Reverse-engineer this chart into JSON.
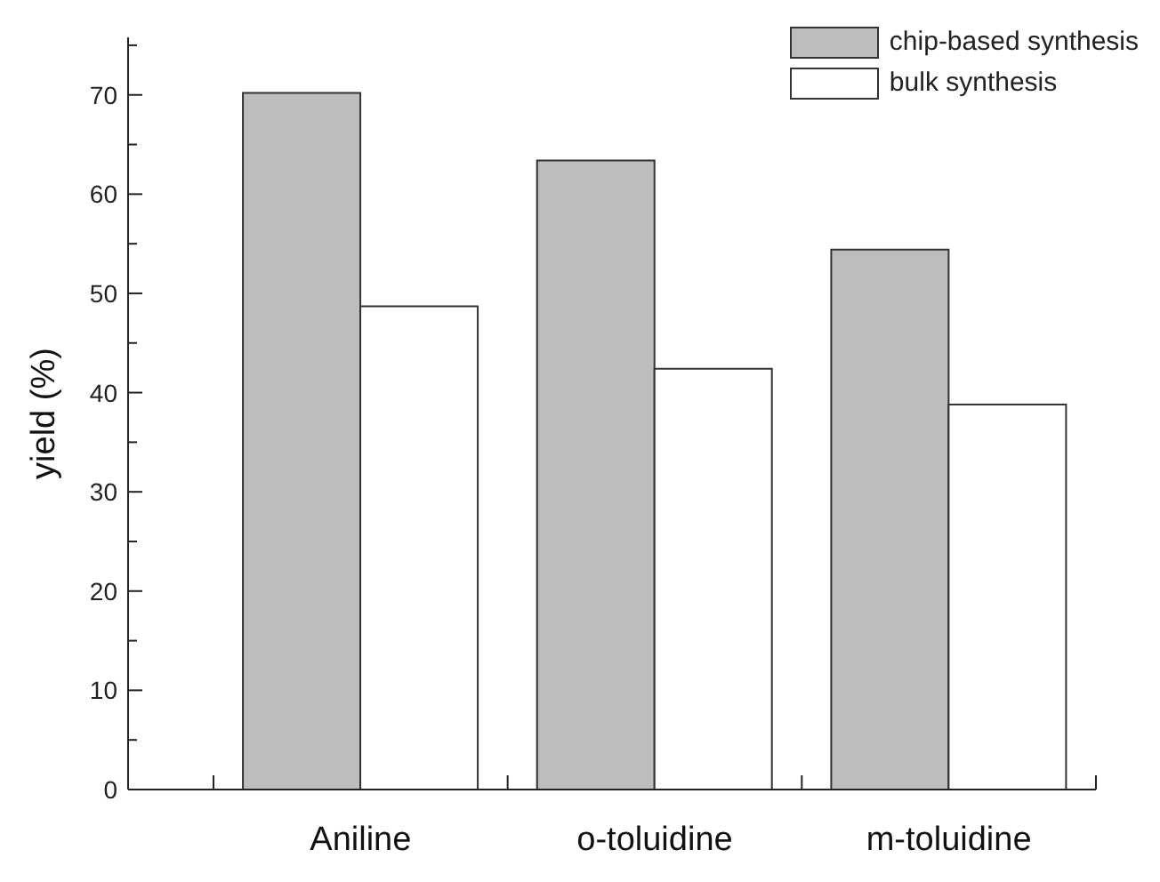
{
  "chart_data": {
    "type": "bar",
    "ylabel": "yield (%)",
    "categories": [
      "Aniline",
      "o-toluidine",
      "m-toluidine"
    ],
    "series": [
      {
        "name": "chip-based synthesis",
        "color": "#bdbdbd",
        "values": [
          70.2,
          63.4,
          54.4
        ]
      },
      {
        "name": "bulk synthesis",
        "color": "#ffffff",
        "values": [
          48.7,
          42.4,
          38.8
        ]
      }
    ],
    "ylim": [
      0,
      75.8
    ],
    "yticks": [
      0,
      {
        "value": 5,
        "label": null
      },
      10,
      {
        "value": 15,
        "label": null
      },
      20,
      {
        "value": 25,
        "label": null
      },
      30,
      {
        "value": 35,
        "label": null
      },
      40,
      {
        "value": 45,
        "label": null
      },
      50,
      {
        "value": 55,
        "label": null
      },
      60,
      {
        "value": 65,
        "label": null
      },
      70,
      {
        "value": 75,
        "label": null
      }
    ],
    "grid": false,
    "legend": "top right"
  }
}
